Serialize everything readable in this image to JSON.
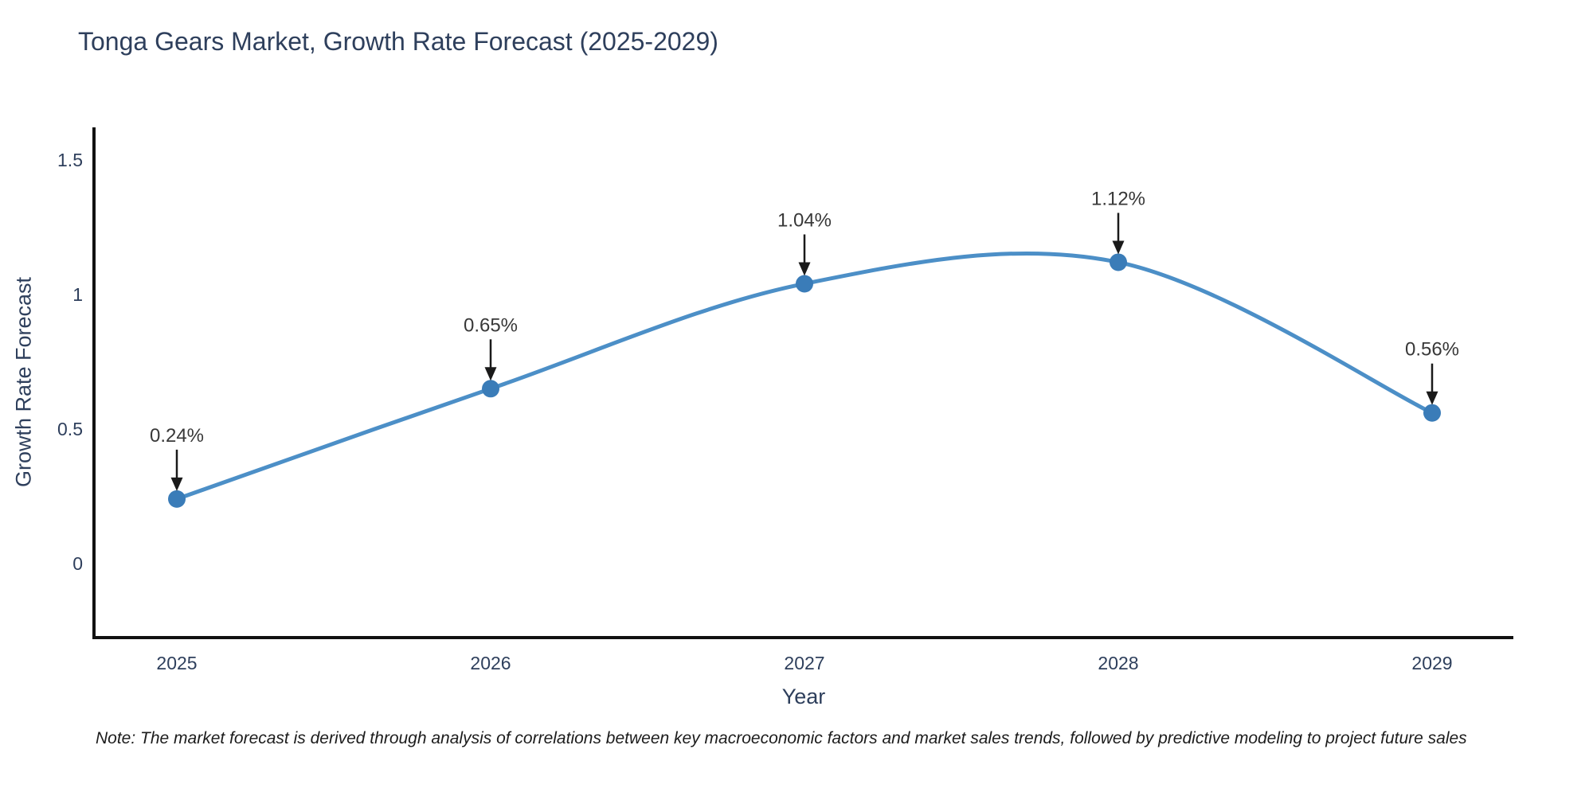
{
  "title": "Tonga Gears Market, Growth Rate Forecast (2025-2029)",
  "note": "Note: The market forecast is derived through analysis of correlations between key macroeconomic factors and market sales trends, followed by predictive modeling to project future sales",
  "chart_data": {
    "type": "line",
    "title": "Tonga Gears Market, Growth Rate Forecast (2025-2029)",
    "xlabel": "Year",
    "ylabel": "Growth Rate Forecast",
    "categories": [
      "2025",
      "2026",
      "2027",
      "2028",
      "2029"
    ],
    "values": [
      0.24,
      0.65,
      1.04,
      1.12,
      0.56
    ],
    "point_labels": [
      "0.24%",
      "0.65%",
      "1.04%",
      "1.12%",
      "0.56%"
    ],
    "y_ticks": [
      "1.5",
      "1",
      "0.5",
      "0"
    ],
    "y_tick_values": [
      1.5,
      1,
      0.5,
      0
    ],
    "ylim": [
      -0.28,
      1.62
    ],
    "grid": false,
    "legend": "none",
    "line_smoothing": "spline",
    "annotations_have_arrows": true,
    "colors": {
      "line": "#4c8fc7",
      "marker": "#3a7cb8",
      "axis": "#111111",
      "axis_text": "#2e3f5c",
      "annotation_text": "#383838",
      "arrow": "#1a1a1a",
      "background": "#ffffff"
    }
  }
}
